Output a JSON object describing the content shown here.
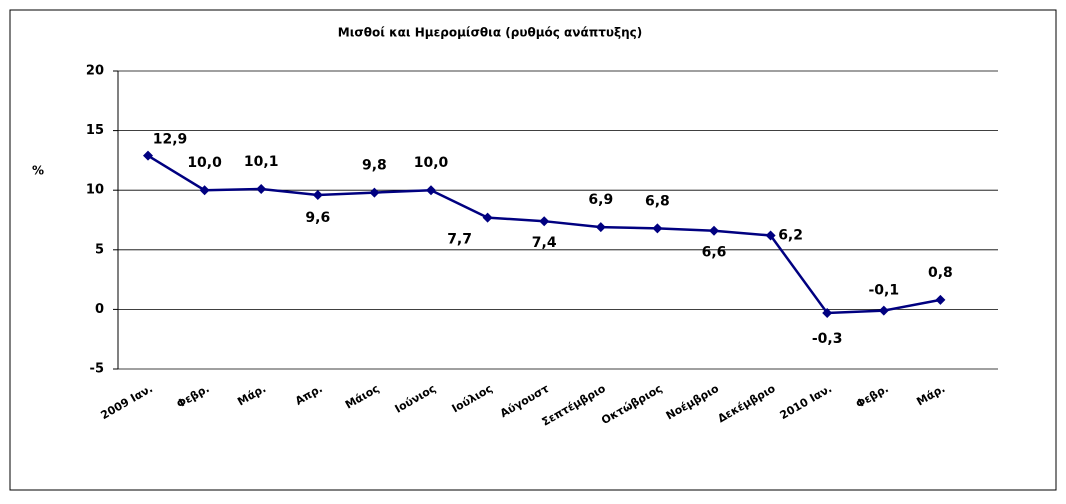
{
  "chart_data": {
    "type": "line",
    "title": "Μισθοί και Ημερομίσθια (ρυθμός ανάπτυξης)",
    "y_label": "%",
    "categories": [
      "2009 Ιαν.",
      "Φεβρ.",
      "Μάρ.",
      "Απρ.",
      "Μάιος",
      "Ιούνιος",
      "Ιούλιος",
      "Αύγουστ",
      "Σεπτέμβριο",
      "Οκτώβριος",
      "Νοέμβριο",
      "Δεκέμβριο",
      "2010 Ιαν.",
      "Φεβρ.",
      "Μάρ."
    ],
    "series": [
      {
        "name": "Μισθοί και Ημερομίσθια",
        "color": "#000080",
        "values": [
          12.9,
          10.0,
          10.1,
          9.6,
          9.8,
          10.0,
          7.7,
          7.4,
          6.9,
          6.8,
          6.6,
          6.2,
          -0.3,
          -0.1,
          0.8
        ],
        "value_labels": [
          "12,9",
          "10,0",
          "10,1",
          "9,6",
          "9,8",
          "10,0",
          "7,7",
          "7,4",
          "6,9",
          "6,8",
          "6,6",
          "6,2",
          "-0,3",
          "-0,1",
          "0,8"
        ]
      }
    ],
    "ylim": [
      -5,
      20
    ],
    "yticks": [
      -5,
      0,
      5,
      10,
      15,
      20
    ],
    "grid": true
  }
}
